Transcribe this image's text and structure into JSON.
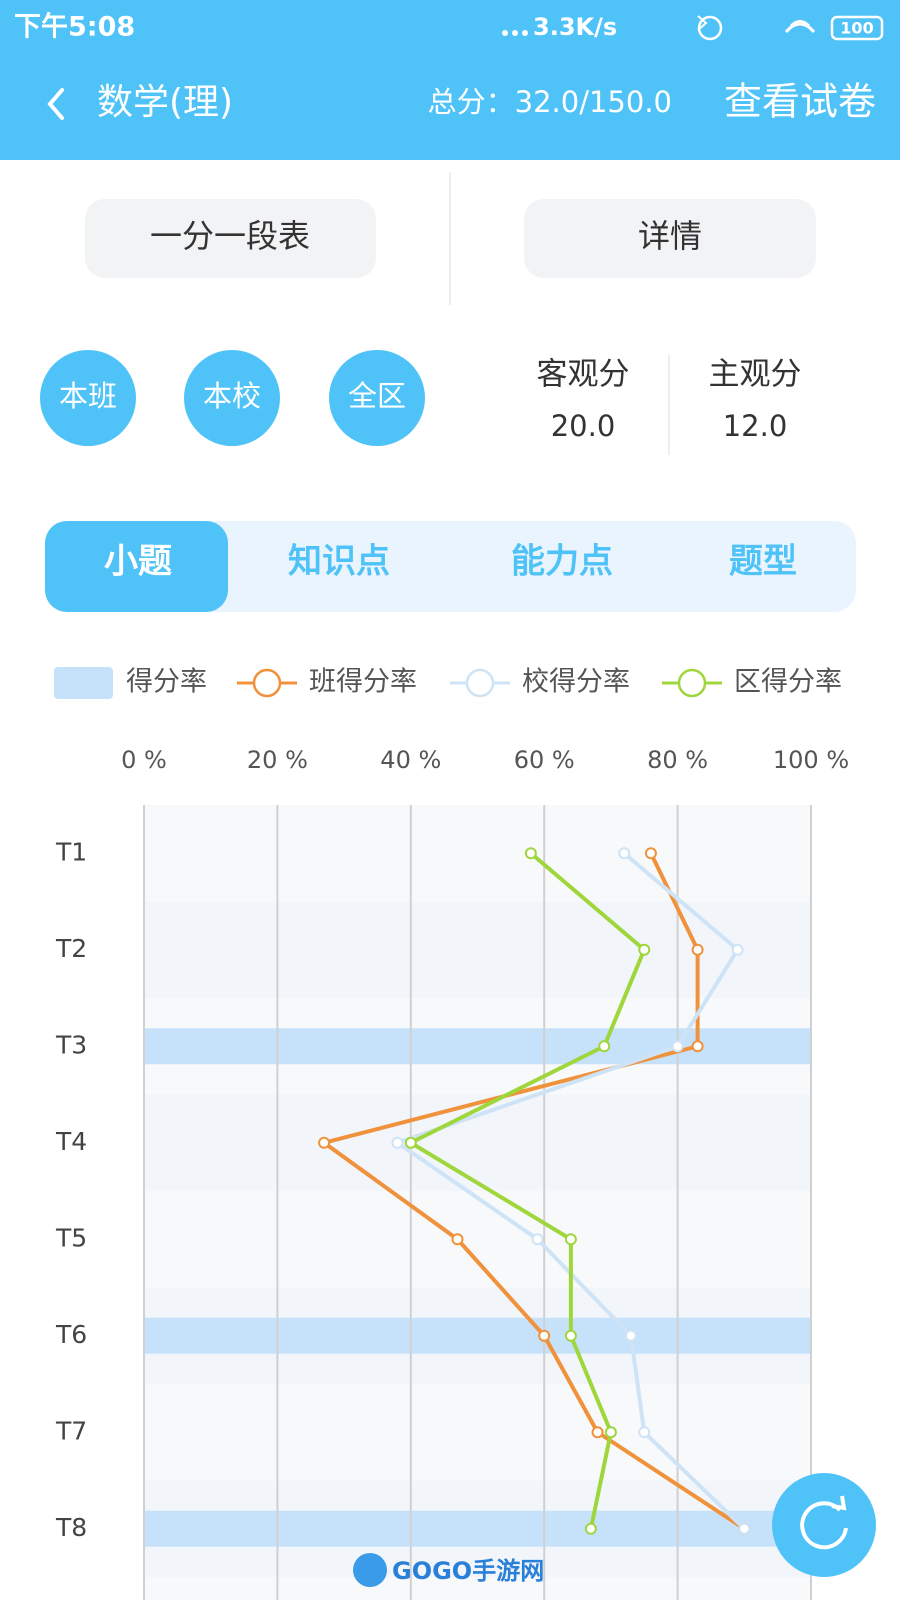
{
  "status_bar": {
    "time": "下午5:08",
    "network_speed": "3.3K/s",
    "battery": "100"
  },
  "header": {
    "title": "数学(理)",
    "total_score": "总分：32.0/150.0",
    "view_paper": "查看试卷"
  },
  "buttons": [
    "一分一段表",
    "详情"
  ],
  "scopes": [
    "本班",
    "本校",
    "全区"
  ],
  "scores": [
    {
      "label": "客观分",
      "value": "20.0"
    },
    {
      "label": "主观分",
      "value": "12.0"
    }
  ],
  "tabs": [
    "小题",
    "知识点",
    "能力点",
    "题型"
  ],
  "active_tab": 0,
  "chart_data": {
    "type": "combo",
    "orientation": "horizontal",
    "categories": [
      "T1",
      "T2",
      "T3",
      "T4",
      "T5",
      "T6",
      "T7",
      "T8"
    ],
    "series": [
      {
        "name": "得分率",
        "type": "bar",
        "color": "#c6e2fb",
        "values": [
          0,
          0,
          100,
          0,
          0,
          100,
          0,
          100
        ]
      },
      {
        "name": "班得分率",
        "type": "line",
        "color": "#f0913c",
        "values": [
          76,
          83,
          83,
          27,
          47,
          60,
          68,
          90
        ]
      },
      {
        "name": "校得分率",
        "type": "line",
        "color": "#cfe3f7",
        "values": [
          72,
          89,
          80,
          38,
          59,
          73,
          75,
          90
        ]
      },
      {
        "name": "区得分率",
        "type": "line",
        "color": "#9fd63c",
        "values": [
          58,
          75,
          69,
          40,
          64,
          64,
          70,
          67
        ]
      }
    ],
    "xlim": [
      0,
      100
    ],
    "xticks": [
      {
        "value": 0,
        "label": "0 %"
      },
      {
        "value": 20,
        "label": "20 %"
      },
      {
        "value": 40,
        "label": "40 %"
      },
      {
        "value": 60,
        "label": "60 %"
      },
      {
        "value": 80,
        "label": "80 %"
      },
      {
        "value": 100,
        "label": "100 %"
      }
    ],
    "grid": true
  },
  "watermark": "GOGO手游网"
}
